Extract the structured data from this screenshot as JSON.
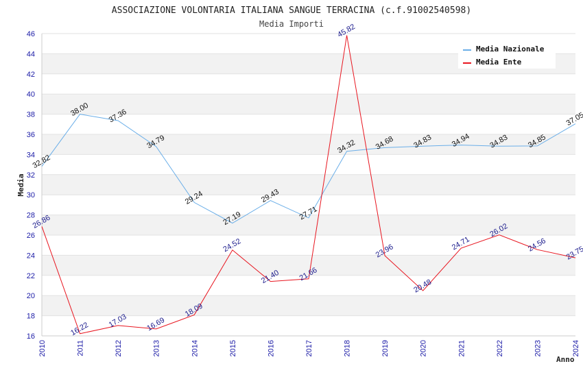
{
  "chart_data": {
    "type": "line",
    "title": "ASSOCIAZIONE VOLONTARIA ITALIANA SANGUE TERRACINA (c.f.91002540598)",
    "subtitle": "Media Importi",
    "xlabel": "Anno",
    "ylabel": "Media",
    "ylim": [
      16,
      46
    ],
    "yticks": [
      "16",
      "18",
      "20",
      "22",
      "24",
      "26",
      "28",
      "30",
      "32",
      "34",
      "36",
      "38",
      "40",
      "42",
      "44",
      "46"
    ],
    "categories": [
      "2010",
      "2011",
      "2012",
      "2013",
      "2014",
      "2015",
      "2016",
      "2017",
      "2018",
      "2019",
      "2020",
      "2021",
      "2022",
      "2023",
      "2024"
    ],
    "grid": "horizontal, alternating bands",
    "legend_position": "top-right",
    "series": [
      {
        "name": "Media Nazionale",
        "color": "#6aaee8",
        "values": [
          32.82,
          38.0,
          37.36,
          34.79,
          29.24,
          27.19,
          29.43,
          27.71,
          34.32,
          34.68,
          34.83,
          34.94,
          34.83,
          34.85,
          37.05
        ],
        "labels": [
          "32.82",
          "38.00",
          "37.36",
          "34.79",
          "29.24",
          "27.19",
          "29.43",
          "27.71",
          "34.32",
          "34.68",
          "34.83",
          "34.94",
          "34.83",
          "34.85",
          "37.05"
        ]
      },
      {
        "name": "Media Ente",
        "color": "#e8141e",
        "values": [
          26.86,
          16.22,
          17.03,
          16.69,
          18.09,
          24.52,
          21.4,
          21.66,
          45.82,
          23.96,
          20.48,
          24.71,
          26.02,
          24.56,
          23.75
        ],
        "labels": [
          "26.86",
          "16.22",
          "17.03",
          "16.69",
          "18.09",
          "24.52",
          "21.40",
          "21.66",
          "45.82",
          "23.96",
          "20.48",
          "24.71",
          "26.02",
          "24.56",
          "23.75"
        ]
      }
    ]
  }
}
